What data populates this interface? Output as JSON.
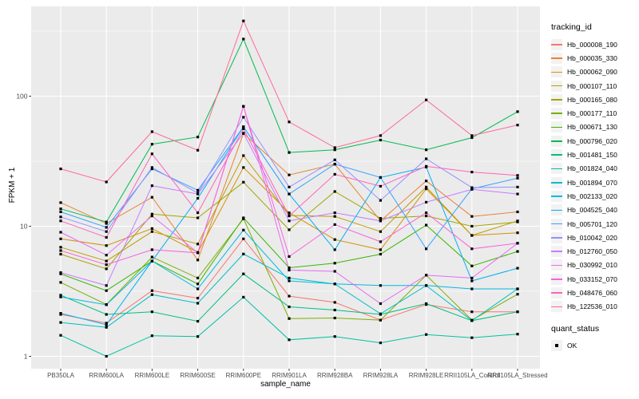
{
  "chart_data": {
    "type": "line",
    "title": "",
    "xlabel": "sample_name",
    "ylabel": "FPKM + 1",
    "y_scale": "log10",
    "y_ticks": [
      1,
      10,
      100
    ],
    "y_minor_ticks": [
      3.162,
      31.62,
      316.2
    ],
    "ylim": [
      0.8,
      480
    ],
    "grid": "white major and minor gridlines on gray panel",
    "legend_position": "right",
    "legend_title": "tracking_id",
    "legend2_title": "quant_status",
    "legend2_items": [
      "OK"
    ],
    "point_shape": "filled-black-square",
    "categories": [
      "PB350LA",
      "RRIM600LA",
      "RRIM600LE",
      "RRIM600SE",
      "RRIM600PE",
      "RRIM901LA",
      "RRIM928BA",
      "RRIM928LA",
      "RRIM928LE",
      "RRII105LA_Control",
      "RRII105LA_Stressed"
    ],
    "series": [
      {
        "name": "Hb_000008_190",
        "color": "#F8766D",
        "values": [
          2.1,
          1.8,
          3.2,
          2.8,
          8.0,
          2.9,
          2.6,
          1.9,
          2.5,
          2.2,
          2.2
        ]
      },
      {
        "name": "Hb_000035_330",
        "color": "#EA8331",
        "values": [
          15.2,
          10.5,
          16.7,
          5.5,
          51.6,
          24.8,
          30.0,
          11.0,
          22.3,
          11.9,
          12.9
        ]
      },
      {
        "name": "Hb_000062_090",
        "color": "#D89000",
        "values": [
          8.0,
          7.1,
          9.6,
          6.3,
          28.3,
          12.7,
          7.9,
          6.6,
          19.4,
          8.5,
          8.9
        ]
      },
      {
        "name": "Hb_000107_110",
        "color": "#C09B00",
        "values": [
          6.9,
          5.4,
          9.1,
          7.3,
          34.9,
          12.1,
          11.9,
          9.1,
          20.0,
          8.5,
          11.0
        ]
      },
      {
        "name": "Hb_000165_080",
        "color": "#A3A500",
        "values": [
          6.1,
          4.7,
          12.4,
          11.6,
          21.8,
          9.4,
          18.5,
          11.5,
          12.0,
          10.0,
          10.8
        ]
      },
      {
        "name": "Hb_000177_110",
        "color": "#7CAE00",
        "values": [
          3.7,
          2.5,
          5.8,
          4.0,
          11.4,
          1.95,
          1.97,
          1.9,
          4.2,
          1.9,
          3.0
        ]
      },
      {
        "name": "Hb_000671_130",
        "color": "#39B600",
        "values": [
          4.3,
          3.2,
          5.4,
          3.6,
          11.6,
          4.8,
          5.2,
          6.1,
          10.2,
          4.95,
          6.4
        ]
      },
      {
        "name": "Hb_000796_020",
        "color": "#00BB4E",
        "values": [
          13.6,
          10.8,
          42.7,
          48.5,
          275,
          36.9,
          38.7,
          46.0,
          38.7,
          48.0,
          76.0
        ]
      },
      {
        "name": "Hb_001481_150",
        "color": "#00BF7D",
        "values": [
          2.95,
          2.1,
          2.2,
          1.86,
          4.3,
          2.4,
          2.27,
          2.1,
          2.54,
          1.88,
          2.2
        ]
      },
      {
        "name": "Hb_001824_040",
        "color": "#00C1A3",
        "values": [
          1.45,
          1.0,
          1.44,
          1.42,
          2.85,
          1.34,
          1.42,
          1.27,
          1.47,
          1.39,
          1.48
        ]
      },
      {
        "name": "Hb_001894_070",
        "color": "#00BFC4",
        "values": [
          1.82,
          1.67,
          2.98,
          2.56,
          6.12,
          4.0,
          3.6,
          2.12,
          3.5,
          1.88,
          3.3
        ]
      },
      {
        "name": "Hb_002133_020",
        "color": "#00BAE0",
        "values": [
          2.86,
          2.49,
          5.4,
          3.3,
          9.35,
          3.8,
          3.6,
          3.5,
          3.5,
          3.3,
          3.3
        ]
      },
      {
        "name": "Hb_004525_040",
        "color": "#00B0F6",
        "values": [
          2.14,
          1.75,
          5.4,
          16.4,
          58.1,
          17.7,
          6.6,
          23.7,
          28.5,
          3.8,
          4.76
        ]
      },
      {
        "name": "Hb_005701_120",
        "color": "#35A2FF",
        "values": [
          12.9,
          9.8,
          27.6,
          18.9,
          58.1,
          17.7,
          30.0,
          23.7,
          6.7,
          19.4,
          23.4
        ]
      },
      {
        "name": "Hb_010042_020",
        "color": "#9590FF",
        "values": [
          11.8,
          9.1,
          28.3,
          18.0,
          68.9,
          20.0,
          32.4,
          15.8,
          33.0,
          19.8,
          20.0
        ]
      },
      {
        "name": "Hb_012760_050",
        "color": "#C77CFF",
        "values": [
          4.4,
          3.5,
          20.5,
          17.7,
          51.9,
          11.0,
          12.7,
          11.0,
          15.3,
          19.2,
          17.7
        ]
      },
      {
        "name": "Hb_030992_010",
        "color": "#E76BF3",
        "values": [
          9.0,
          6.0,
          12.0,
          6.25,
          83.4,
          4.6,
          4.5,
          2.54,
          4.2,
          4.0,
          7.4
        ]
      },
      {
        "name": "Hb_033152_070",
        "color": "#FA62DB",
        "values": [
          6.5,
          5.06,
          6.6,
          6.25,
          83.4,
          5.85,
          10.3,
          7.6,
          12.7,
          6.7,
          7.4
        ]
      },
      {
        "name": "Hb_048476_060",
        "color": "#FF62BC",
        "values": [
          11.0,
          8.2,
          36.0,
          12.7,
          56.1,
          12.0,
          25.1,
          20.3,
          28.9,
          26.1,
          24.6
        ]
      },
      {
        "name": "Hb_122536_010",
        "color": "#FF6A98",
        "values": [
          27.6,
          21.9,
          53.3,
          38.4,
          379,
          63.4,
          40.2,
          49.8,
          93.6,
          49.8,
          60.0
        ]
      }
    ]
  },
  "colors": {
    "panel_bg": "#EBEBEB",
    "grid": "#FFFFFF",
    "axis_text": "#4D4D4D",
    "tick_mark": "#333333",
    "point": "#000000",
    "legend_key_bg": "#F2F2F2",
    "background": "#FFFFFF"
  }
}
